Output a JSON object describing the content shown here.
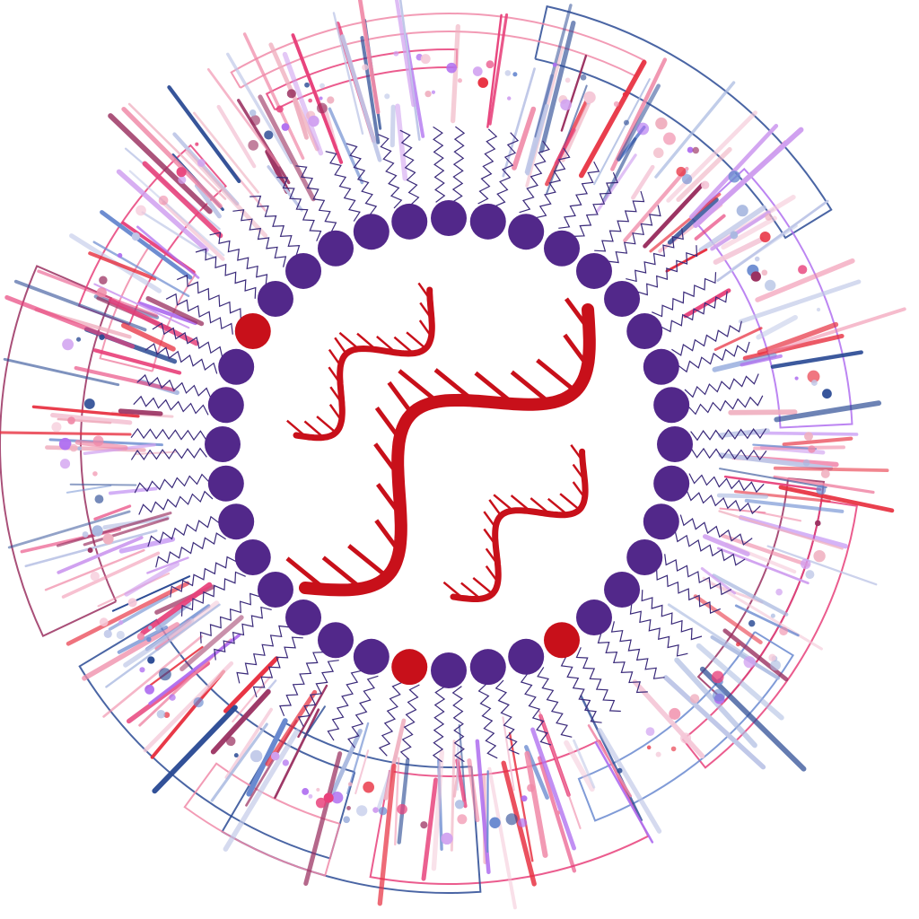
{
  "illustration": {
    "subject": "lipid-nanoparticle-with-rna",
    "colors": {
      "lipid_head": "#52288a",
      "lipid_head_highlight": "#c8101a",
      "lipid_tail": "#3a2a7a",
      "rna": "#c8101a",
      "background": "#ffffff"
    },
    "palette": [
      "#e8407a",
      "#f08aa8",
      "#2a4a94",
      "#6a8ad0",
      "#b070f0",
      "#d0a0f0",
      "#a8b8e0",
      "#f0b0c0",
      "#e83040",
      "#9a3060",
      "#c0c8e8",
      "#f5c8d8"
    ],
    "icons": [
      "lipid-head-icon",
      "rna-helix-icon"
    ]
  }
}
